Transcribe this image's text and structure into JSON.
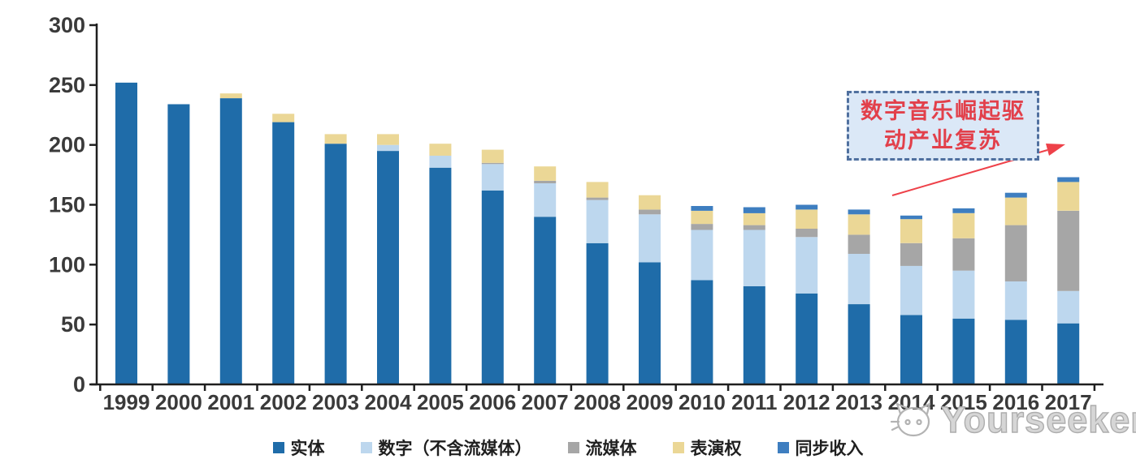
{
  "chart_data": {
    "type": "bar",
    "stacked": true,
    "title": "",
    "xlabel": "",
    "ylabel": "",
    "categories": [
      "1999",
      "2000",
      "2001",
      "2002",
      "2003",
      "2004",
      "2005",
      "2006",
      "2007",
      "2008",
      "2009",
      "2010",
      "2011",
      "2012",
      "2013",
      "2014",
      "2015",
      "2016",
      "2017"
    ],
    "series": [
      {
        "key": "physical",
        "name": "实体",
        "color": "#1F6CA9",
        "values": [
          252,
          234,
          239,
          219,
          201,
          195,
          181,
          162,
          140,
          118,
          102,
          87,
          82,
          76,
          67,
          58,
          55,
          54,
          51
        ]
      },
      {
        "key": "digital-excl-streaming",
        "name": "数字（不含流媒体）",
        "color": "#BDD7EE",
        "values": [
          0,
          0,
          0,
          0,
          0,
          5,
          10,
          22,
          28,
          36,
          40,
          42,
          47,
          47,
          42,
          41,
          40,
          32,
          27
        ]
      },
      {
        "key": "streaming",
        "name": "流媒体",
        "color": "#A6A6A6",
        "values": [
          0,
          0,
          0,
          0,
          0,
          0,
          0,
          1,
          2,
          2,
          4,
          5,
          4,
          7,
          16,
          19,
          27,
          47,
          67
        ]
      },
      {
        "key": "performance-rights",
        "name": "表演权",
        "color": "#EBD796",
        "values": [
          0,
          0,
          4,
          7,
          8,
          9,
          10,
          11,
          12,
          13,
          12,
          11,
          10,
          16,
          17,
          20,
          21,
          23,
          24
        ]
      },
      {
        "key": "sync-revenue",
        "name": "同步收入",
        "color": "#3E7EC0",
        "values": [
          0,
          0,
          0,
          0,
          0,
          0,
          0,
          0,
          0,
          0,
          0,
          4,
          5,
          4,
          4,
          3,
          4,
          4,
          4
        ]
      }
    ],
    "ylim": [
      0,
      300
    ],
    "yticks": [
      "0",
      "50",
      "100",
      "150",
      "200",
      "250",
      "300"
    ],
    "grid": false,
    "legend_position": "bottom"
  },
  "annotation": {
    "line1": "数字音乐崛起驱",
    "line2": "动产业复苏",
    "fill_color": "#DBE8F7",
    "border_color": "#50709F",
    "text_color": "#E2404B",
    "arrow_color": "#EE4149"
  },
  "axis": {
    "line_color": "#1f1f1f",
    "label_color": "#3A3A3A"
  },
  "watermark": {
    "text": "Yourseeker",
    "logo": "cat-logo",
    "color": "#ADADAD"
  }
}
